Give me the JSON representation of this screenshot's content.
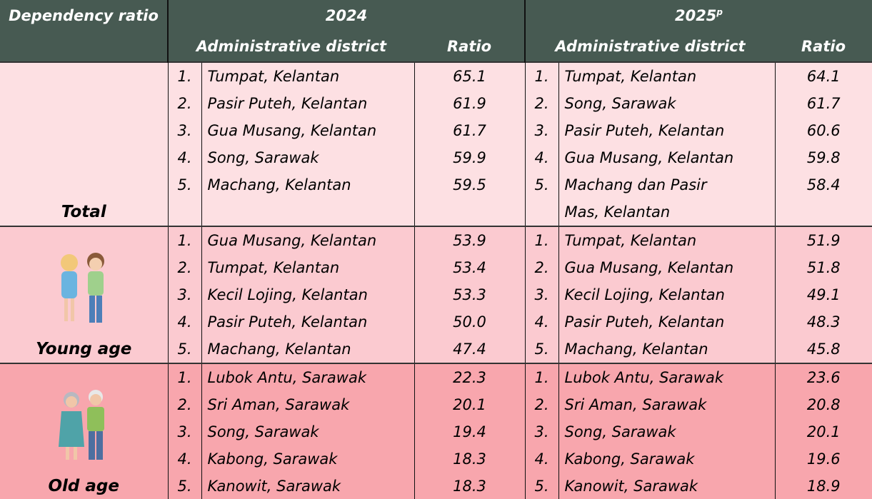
{
  "header": {
    "dependency_ratio": "Dependency ratio",
    "year_1": "2024",
    "year_2": "2025",
    "year_2_superscript": "p",
    "district": "Administrative district",
    "ratio": "Ratio"
  },
  "groups": [
    {
      "label": "Total",
      "y2024": [
        {
          "rank": "1.",
          "district": "Tumpat, Kelantan",
          "ratio": "65.1"
        },
        {
          "rank": "2.",
          "district": "Pasir Puteh, Kelantan",
          "ratio": "61.9"
        },
        {
          "rank": "3.",
          "district": "Gua Musang, Kelantan",
          "ratio": "61.7"
        },
        {
          "rank": "4.",
          "district": "Song, Sarawak",
          "ratio": "59.9"
        },
        {
          "rank": "5.",
          "district": "Machang, Kelantan",
          "ratio": "59.5"
        }
      ],
      "y2025": [
        {
          "rank": "1.",
          "district": "Tumpat, Kelantan",
          "ratio": "64.1"
        },
        {
          "rank": "2.",
          "district": "Song, Sarawak",
          "ratio": "61.7"
        },
        {
          "rank": "3.",
          "district": "Pasir Puteh, Kelantan",
          "ratio": "60.6"
        },
        {
          "rank": "4.",
          "district": "Gua Musang, Kelantan",
          "ratio": "59.8"
        },
        {
          "rank": "5.",
          "district": "Machang dan Pasir Mas, Kelantan",
          "ratio": "58.4"
        }
      ]
    },
    {
      "label": "Young age",
      "y2024": [
        {
          "rank": "1.",
          "district": "Gua Musang, Kelantan",
          "ratio": "53.9"
        },
        {
          "rank": "2.",
          "district": "Tumpat, Kelantan",
          "ratio": "53.4"
        },
        {
          "rank": "3.",
          "district": "Kecil Lojing, Kelantan",
          "ratio": "53.3"
        },
        {
          "rank": "4.",
          "district": "Pasir Puteh, Kelantan",
          "ratio": "50.0"
        },
        {
          "rank": "5.",
          "district": "Machang, Kelantan",
          "ratio": "47.4"
        }
      ],
      "y2025": [
        {
          "rank": "1.",
          "district": "Tumpat, Kelantan",
          "ratio": "51.9"
        },
        {
          "rank": "2.",
          "district": "Gua Musang, Kelantan",
          "ratio": "51.8"
        },
        {
          "rank": "3.",
          "district": "Kecil Lojing, Kelantan",
          "ratio": "49.1"
        },
        {
          "rank": "4.",
          "district": "Pasir Puteh, Kelantan",
          "ratio": "48.3"
        },
        {
          "rank": "5.",
          "district": "Machang, Kelantan",
          "ratio": "45.8"
        }
      ]
    },
    {
      "label": "Old age",
      "y2024": [
        {
          "rank": "1.",
          "district": "Lubok Antu, Sarawak",
          "ratio": "22.3"
        },
        {
          "rank": "2.",
          "district": "Sri Aman, Sarawak",
          "ratio": "20.1"
        },
        {
          "rank": "3.",
          "district": "Song, Sarawak",
          "ratio": "19.4"
        },
        {
          "rank": "4.",
          "district": "Kabong, Sarawak",
          "ratio": "18.3"
        },
        {
          "rank": "5.",
          "district": "Kanowit, Sarawak",
          "ratio": "18.3"
        }
      ],
      "y2025": [
        {
          "rank": "1.",
          "district": "Lubok Antu, Sarawak",
          "ratio": "23.6"
        },
        {
          "rank": "2.",
          "district": "Sri Aman, Sarawak",
          "ratio": "20.8"
        },
        {
          "rank": "3.",
          "district": "Song, Sarawak",
          "ratio": "20.1"
        },
        {
          "rank": "4.",
          "district": "Kabong, Sarawak",
          "ratio": "19.6"
        },
        {
          "rank": "5.",
          "district": "Kanowit, Sarawak",
          "ratio": "18.9"
        }
      ]
    }
  ]
}
